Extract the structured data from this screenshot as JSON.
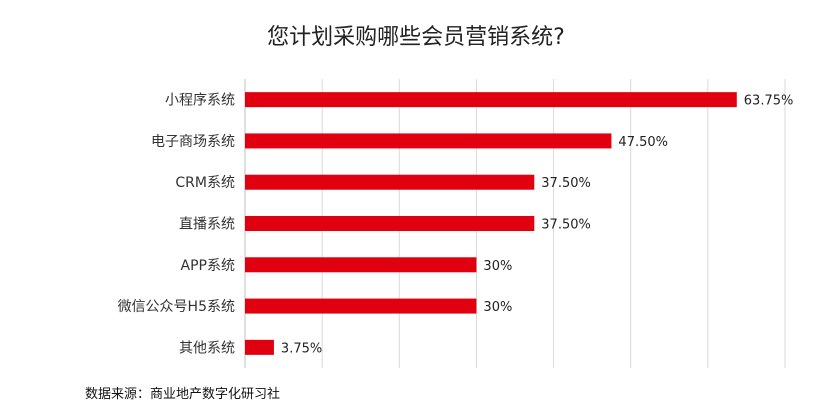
{
  "chart_data": {
    "type": "bar",
    "orientation": "horizontal",
    "title": "您计划采购哪些会员营销系统?",
    "categories": [
      "小程序系统",
      "电子商场系统",
      "CRM系统",
      "直播系统",
      "APP系统",
      "微信公众号H5系统",
      "其他系统"
    ],
    "values": [
      63.75,
      47.5,
      37.5,
      37.5,
      30,
      30,
      3.75
    ],
    "value_labels": [
      "63.75%",
      "47.50%",
      "37.50%",
      "37.50%",
      "30%",
      "30%",
      "3.75%"
    ],
    "xlim": [
      0,
      70
    ],
    "grid": true,
    "bar_color": "#e0000f",
    "source": "数据来源：商业地产数字化研习社"
  }
}
